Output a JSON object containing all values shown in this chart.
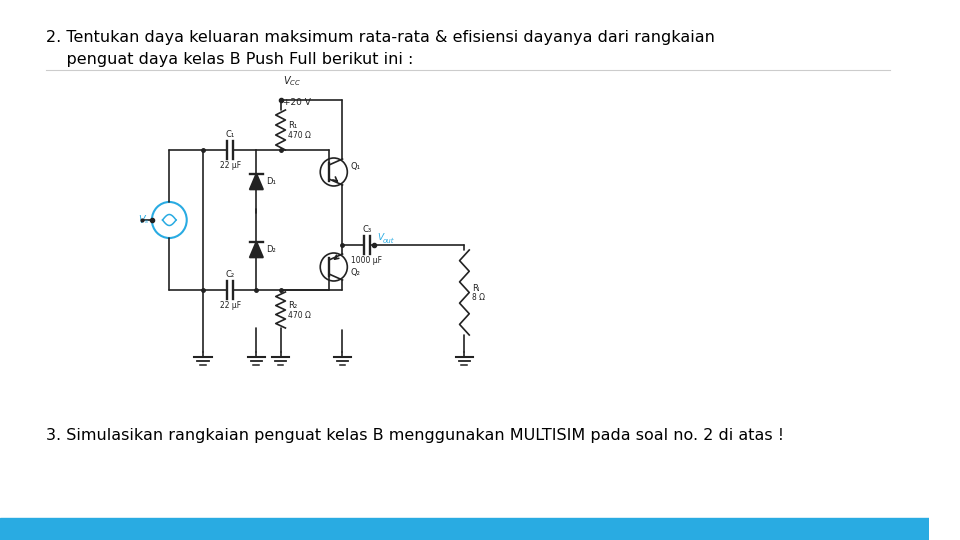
{
  "background_color": "#ffffff",
  "title_line1": "2. Tentukan daya keluaran maksimum rata-rata & efisiensi dayanya dari rangkaian",
  "title_line2": "    penguat daya kelas B Push Full berikut ini :",
  "bottom_text": "3. Simulasikan rangkaian penguat kelas B menggunakan MULTISIM pada soal no. 2 di atas !",
  "footer_color": "#29ABE2",
  "text_color": "#000000",
  "font_size_title": 11.5,
  "font_size_bottom": 11.5,
  "line_color": "#cccccc",
  "circuit_color": "#222222",
  "cyan_color": "#29ABE2"
}
